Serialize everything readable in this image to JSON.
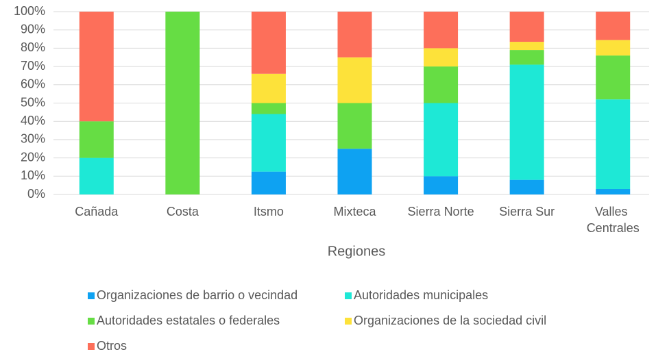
{
  "chart_data": {
    "type": "stacked_bar",
    "categories": [
      "Cañada",
      "Costa",
      "Itsmo",
      "Mixteca",
      "Sierra Norte",
      "Sierra Sur",
      "Valles Centrales"
    ],
    "series": [
      {
        "name": "Organizaciones de barrio o vecindad",
        "color": "#0ea2f2",
        "values": [
          0,
          0,
          12.5,
          25,
          10,
          8,
          3
        ]
      },
      {
        "name": "Autoridades municipales",
        "color": "#1ee8d6",
        "values": [
          20,
          0,
          31.5,
          0,
          40,
          63,
          49
        ]
      },
      {
        "name": "Autoridades estatales o federales",
        "color": "#66dd44",
        "values": [
          20,
          100,
          6,
          25,
          20,
          8,
          24
        ]
      },
      {
        "name": "Organizaciones de la sociedad civil",
        "color": "#fde23a",
        "values": [
          0,
          0,
          16,
          25,
          10,
          4.5,
          8.5
        ]
      },
      {
        "name": "Otros",
        "color": "#fd6f5a",
        "values": [
          60,
          0,
          34,
          25,
          20,
          16.5,
          15.5
        ]
      }
    ],
    "xlabel": "Regiones",
    "ylim": [
      0,
      100
    ],
    "yticks": [
      {
        "value": 0,
        "label": "0%"
      },
      {
        "value": 10,
        "label": "10%"
      },
      {
        "value": 20,
        "label": "20%"
      },
      {
        "value": 30,
        "label": "30%"
      },
      {
        "value": 40,
        "label": "40%"
      },
      {
        "value": 50,
        "label": "50%"
      },
      {
        "value": 60,
        "label": "60%"
      },
      {
        "value": 70,
        "label": "70%"
      },
      {
        "value": 80,
        "label": "80%"
      },
      {
        "value": 90,
        "label": "90%"
      },
      {
        "value": 100,
        "label": "100%"
      }
    ],
    "grid": true,
    "legend": "bottom"
  }
}
